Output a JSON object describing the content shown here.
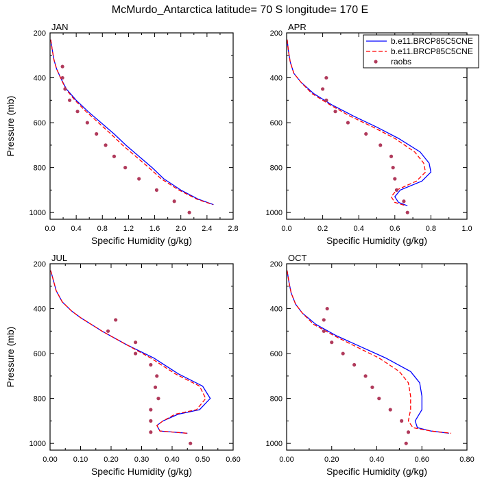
{
  "figure": {
    "title": "McMurdo_Antarctica  latitude= 70 S longitude= 170 E"
  },
  "legend": {
    "placement": "top-right",
    "entries": [
      {
        "label": "b.e11.BRCP85C5CNE",
        "style": "solid",
        "color": "#0000ff"
      },
      {
        "label": "b.e11.BRCP85C5CNE",
        "style": "dashed",
        "color": "#ff0000"
      },
      {
        "label": "raobs",
        "style": "marker",
        "color": "#b03a5b"
      }
    ]
  },
  "colors": {
    "series_solid": "#0000ff",
    "series_dashed": "#ff0000",
    "raobs_marker": "#b03a5b",
    "axes": "#000000"
  },
  "chart_data": [
    {
      "type": "line",
      "panel_title": "JAN",
      "xlabel": "Specific Humidity (g/kg)",
      "ylabel": "Pressure (mb)",
      "xlim": [
        0.0,
        2.8
      ],
      "ylim": [
        1030,
        200
      ],
      "y_reversed": true,
      "xticks": [
        "0.0",
        "0.4",
        "0.8",
        "1.2",
        "1.6",
        "2.0",
        "2.4",
        "2.8"
      ],
      "yticks": [
        "200",
        "400",
        "600",
        "800",
        "1000"
      ],
      "series": [
        {
          "name": "b.e11.BRCP85C5CNE",
          "style": "solid",
          "points": [
            [
              0.01,
              230
            ],
            [
              0.03,
              270
            ],
            [
              0.06,
              320
            ],
            [
              0.1,
              360
            ],
            [
              0.16,
              400
            ],
            [
              0.25,
              450
            ],
            [
              0.4,
              500
            ],
            [
              0.58,
              550
            ],
            [
              0.78,
              600
            ],
            [
              0.98,
              650
            ],
            [
              1.16,
              700
            ],
            [
              1.36,
              750
            ],
            [
              1.56,
              800
            ],
            [
              1.74,
              850
            ],
            [
              2.0,
              900
            ],
            [
              2.26,
              940
            ],
            [
              2.5,
              965
            ]
          ]
        },
        {
          "name": "b.e11.BRCP85C5CNE",
          "style": "dashed",
          "points": [
            [
              0.01,
              230
            ],
            [
              0.03,
              270
            ],
            [
              0.06,
              320
            ],
            [
              0.1,
              360
            ],
            [
              0.16,
              400
            ],
            [
              0.24,
              450
            ],
            [
              0.38,
              500
            ],
            [
              0.55,
              550
            ],
            [
              0.74,
              600
            ],
            [
              0.93,
              650
            ],
            [
              1.11,
              700
            ],
            [
              1.31,
              750
            ],
            [
              1.51,
              800
            ],
            [
              1.7,
              850
            ],
            [
              1.97,
              900
            ],
            [
              2.24,
              940
            ],
            [
              2.49,
              965
            ]
          ]
        },
        {
          "name": "raobs",
          "style": "markers",
          "points": [
            [
              0.19,
              350
            ],
            [
              0.19,
              400
            ],
            [
              0.23,
              450
            ],
            [
              0.3,
              500
            ],
            [
              0.42,
              550
            ],
            [
              0.57,
              600
            ],
            [
              0.71,
              650
            ],
            [
              0.85,
              700
            ],
            [
              0.98,
              750
            ],
            [
              1.15,
              800
            ],
            [
              1.36,
              850
            ],
            [
              1.63,
              900
            ],
            [
              1.9,
              950
            ],
            [
              2.13,
              1000
            ]
          ]
        }
      ]
    },
    {
      "type": "line",
      "panel_title": "APR",
      "xlabel": "Specific Humidity (g/kg)",
      "ylabel": "",
      "xlim": [
        0.0,
        1.0
      ],
      "ylim": [
        1030,
        200
      ],
      "y_reversed": true,
      "xticks": [
        "0.0",
        "0.2",
        "0.4",
        "0.6",
        "0.8",
        "1.0"
      ],
      "yticks": [
        "200",
        "400",
        "600",
        "800",
        "1000"
      ],
      "series": [
        {
          "name": "b.e11.BRCP85C5CNE",
          "style": "solid",
          "points": [
            [
              0.003,
              230
            ],
            [
              0.01,
              280
            ],
            [
              0.02,
              330
            ],
            [
              0.04,
              380
            ],
            [
              0.08,
              420
            ],
            [
              0.15,
              470
            ],
            [
              0.25,
              520
            ],
            [
              0.37,
              570
            ],
            [
              0.5,
              620
            ],
            [
              0.62,
              670
            ],
            [
              0.74,
              730
            ],
            [
              0.79,
              780
            ],
            [
              0.8,
              820
            ],
            [
              0.75,
              860
            ],
            [
              0.63,
              900
            ],
            [
              0.6,
              930
            ],
            [
              0.62,
              955
            ],
            [
              0.67,
              970
            ]
          ]
        },
        {
          "name": "b.e11.BRCP85C5CNE",
          "style": "dashed",
          "points": [
            [
              0.003,
              230
            ],
            [
              0.01,
              280
            ],
            [
              0.02,
              330
            ],
            [
              0.04,
              380
            ],
            [
              0.08,
              420
            ],
            [
              0.14,
              470
            ],
            [
              0.24,
              520
            ],
            [
              0.35,
              570
            ],
            [
              0.48,
              620
            ],
            [
              0.6,
              670
            ],
            [
              0.71,
              730
            ],
            [
              0.76,
              780
            ],
            [
              0.77,
              820
            ],
            [
              0.72,
              860
            ],
            [
              0.61,
              900
            ],
            [
              0.58,
              930
            ],
            [
              0.6,
              955
            ],
            [
              0.66,
              970
            ]
          ]
        },
        {
          "name": "raobs",
          "style": "markers",
          "points": [
            [
              0.22,
              400
            ],
            [
              0.2,
              450
            ],
            [
              0.22,
              500
            ],
            [
              0.27,
              550
            ],
            [
              0.34,
              600
            ],
            [
              0.44,
              650
            ],
            [
              0.52,
              700
            ],
            [
              0.58,
              750
            ],
            [
              0.59,
              800
            ],
            [
              0.6,
              850
            ],
            [
              0.61,
              900
            ],
            [
              0.65,
              950
            ],
            [
              0.67,
              1000
            ]
          ]
        }
      ]
    },
    {
      "type": "line",
      "panel_title": "JUL",
      "xlabel": "Specific Humidity (g/kg)",
      "ylabel": "Pressure (mb)",
      "xlim": [
        0.0,
        0.6
      ],
      "ylim": [
        1030,
        200
      ],
      "y_reversed": true,
      "xticks": [
        "0.00",
        "0.10",
        "0.20",
        "0.30",
        "0.40",
        "0.50",
        "0.60"
      ],
      "yticks": [
        "200",
        "400",
        "600",
        "800",
        "1000"
      ],
      "series": [
        {
          "name": "b.e11.BRCP85C5CNE",
          "style": "solid",
          "points": [
            [
              0.002,
              230
            ],
            [
              0.01,
              270
            ],
            [
              0.02,
              320
            ],
            [
              0.04,
              370
            ],
            [
              0.07,
              410
            ],
            [
              0.1,
              440
            ],
            [
              0.17,
              500
            ],
            [
              0.25,
              560
            ],
            [
              0.34,
              620
            ],
            [
              0.42,
              690
            ],
            [
              0.5,
              745
            ],
            [
              0.525,
              800
            ],
            [
              0.49,
              850
            ],
            [
              0.42,
              870
            ],
            [
              0.37,
              900
            ],
            [
              0.35,
              920
            ],
            [
              0.36,
              945
            ],
            [
              0.45,
              955
            ]
          ]
        },
        {
          "name": "b.e11.BRCP85C5CNE",
          "style": "dashed",
          "points": [
            [
              0.002,
              230
            ],
            [
              0.01,
              270
            ],
            [
              0.02,
              320
            ],
            [
              0.04,
              370
            ],
            [
              0.07,
              410
            ],
            [
              0.1,
              440
            ],
            [
              0.17,
              500
            ],
            [
              0.25,
              560
            ],
            [
              0.33,
              620
            ],
            [
              0.41,
              690
            ],
            [
              0.49,
              745
            ],
            [
              0.51,
              800
            ],
            [
              0.48,
              850
            ],
            [
              0.41,
              870
            ],
            [
              0.37,
              900
            ],
            [
              0.35,
              920
            ],
            [
              0.36,
              945
            ],
            [
              0.45,
              955
            ]
          ]
        },
        {
          "name": "raobs",
          "style": "markers",
          "points": [
            [
              0.215,
              450
            ],
            [
              0.19,
              500
            ],
            [
              0.28,
              550
            ],
            [
              0.28,
              600
            ],
            [
              0.33,
              650
            ],
            [
              0.35,
              700
            ],
            [
              0.345,
              750
            ],
            [
              0.355,
              800
            ],
            [
              0.33,
              850
            ],
            [
              0.33,
              900
            ],
            [
              0.33,
              950
            ],
            [
              0.46,
              1000
            ]
          ]
        }
      ]
    },
    {
      "type": "line",
      "panel_title": "OCT",
      "xlabel": "Specific Humidity (g/kg)",
      "ylabel": "",
      "xlim": [
        0.0,
        0.8
      ],
      "ylim": [
        1030,
        200
      ],
      "y_reversed": true,
      "xticks": [
        "0.00",
        "0.20",
        "0.40",
        "0.60",
        "0.80"
      ],
      "yticks": [
        "200",
        "400",
        "600",
        "800",
        "1000"
      ],
      "series": [
        {
          "name": "b.e11.BRCP85C5CNE",
          "style": "solid",
          "points": [
            [
              0.002,
              230
            ],
            [
              0.01,
              280
            ],
            [
              0.02,
              330
            ],
            [
              0.04,
              380
            ],
            [
              0.07,
              420
            ],
            [
              0.13,
              470
            ],
            [
              0.22,
              520
            ],
            [
              0.33,
              570
            ],
            [
              0.44,
              620
            ],
            [
              0.55,
              680
            ],
            [
              0.59,
              730
            ],
            [
              0.6,
              790
            ],
            [
              0.6,
              850
            ],
            [
              0.57,
              900
            ],
            [
              0.58,
              930
            ],
            [
              0.64,
              945
            ],
            [
              0.72,
              955
            ]
          ]
        },
        {
          "name": "b.e11.BRCP85C5CNE",
          "style": "dashed",
          "points": [
            [
              0.002,
              230
            ],
            [
              0.01,
              280
            ],
            [
              0.02,
              330
            ],
            [
              0.04,
              380
            ],
            [
              0.07,
              420
            ],
            [
              0.12,
              470
            ],
            [
              0.21,
              520
            ],
            [
              0.31,
              570
            ],
            [
              0.41,
              620
            ],
            [
              0.5,
              680
            ],
            [
              0.54,
              730
            ],
            [
              0.55,
              790
            ],
            [
              0.55,
              850
            ],
            [
              0.54,
              900
            ],
            [
              0.56,
              930
            ],
            [
              0.64,
              945
            ],
            [
              0.73,
              955
            ]
          ]
        },
        {
          "name": "raobs",
          "style": "markers",
          "points": [
            [
              0.18,
              400
            ],
            [
              0.165,
              450
            ],
            [
              0.165,
              500
            ],
            [
              0.2,
              550
            ],
            [
              0.25,
              600
            ],
            [
              0.3,
              650
            ],
            [
              0.35,
              700
            ],
            [
              0.38,
              750
            ],
            [
              0.41,
              800
            ],
            [
              0.46,
              850
            ],
            [
              0.51,
              900
            ],
            [
              0.54,
              950
            ],
            [
              0.53,
              1000
            ]
          ]
        }
      ]
    }
  ]
}
